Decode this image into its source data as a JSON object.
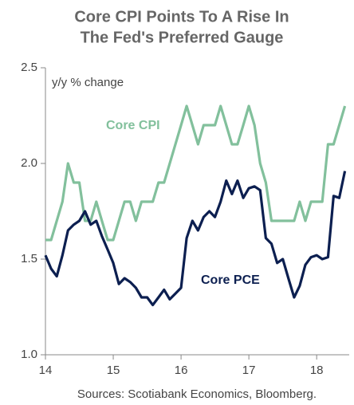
{
  "chart_data": {
    "type": "line",
    "title": [
      "Core CPI Points To A Rise In",
      "The Fed's Preferred Gauge"
    ],
    "y_label": "y/y % change",
    "source": "Sources: Scotiabank Economics, Bloomberg.",
    "x": [
      14,
      14.083,
      14.167,
      14.25,
      14.333,
      14.417,
      14.5,
      14.583,
      14.667,
      14.75,
      14.833,
      14.917,
      15,
      15.083,
      15.167,
      15.25,
      15.333,
      15.417,
      15.5,
      15.583,
      15.667,
      15.75,
      15.833,
      15.917,
      16,
      16.083,
      16.167,
      16.25,
      16.333,
      16.417,
      16.5,
      16.583,
      16.667,
      16.75,
      16.833,
      16.917,
      17,
      17.083,
      17.167,
      17.25,
      17.333,
      17.417,
      17.5,
      17.583,
      17.667,
      17.75,
      17.833,
      17.917,
      18,
      18.083,
      18.167,
      18.25,
      18.333,
      18.417
    ],
    "series": [
      {
        "name": "Core CPI",
        "color": "#82c09c",
        "values": [
          1.6,
          1.6,
          1.7,
          1.8,
          2.0,
          1.9,
          1.9,
          1.7,
          1.7,
          1.8,
          1.7,
          1.6,
          1.6,
          1.7,
          1.8,
          1.8,
          1.7,
          1.8,
          1.8,
          1.8,
          1.9,
          1.9,
          2.0,
          2.1,
          2.2,
          2.3,
          2.2,
          2.1,
          2.2,
          2.2,
          2.2,
          2.3,
          2.2,
          2.1,
          2.1,
          2.2,
          2.3,
          2.2,
          2.0,
          1.9,
          1.7,
          1.7,
          1.7,
          1.7,
          1.7,
          1.8,
          1.7,
          1.8,
          1.8,
          1.8,
          2.1,
          2.1,
          2.2,
          2.3
        ]
      },
      {
        "name": "Core PCE",
        "color": "#0c1f50",
        "values": [
          1.52,
          1.45,
          1.41,
          1.52,
          1.65,
          1.68,
          1.7,
          1.75,
          1.68,
          1.7,
          1.62,
          1.55,
          1.48,
          1.37,
          1.4,
          1.38,
          1.35,
          1.3,
          1.3,
          1.26,
          1.3,
          1.34,
          1.29,
          1.32,
          1.35,
          1.61,
          1.7,
          1.65,
          1.72,
          1.75,
          1.72,
          1.8,
          1.91,
          1.84,
          1.91,
          1.82,
          1.87,
          1.88,
          1.86,
          1.61,
          1.58,
          1.48,
          1.5,
          1.4,
          1.3,
          1.36,
          1.47,
          1.51,
          1.52,
          1.5,
          1.51,
          1.83,
          1.82,
          1.96
        ]
      }
    ],
    "xlim": [
      14,
      18.48
    ],
    "xticks": [
      14,
      15,
      16,
      17,
      18
    ],
    "ylim": [
      1.0,
      2.5
    ],
    "yticks": [
      {
        "value": 1.0,
        "label": "1.0"
      },
      {
        "value": 1.5,
        "label": "1.5"
      },
      {
        "value": 2.0,
        "label": "2.0"
      },
      {
        "value": 2.5,
        "label": "2.5"
      }
    ]
  }
}
